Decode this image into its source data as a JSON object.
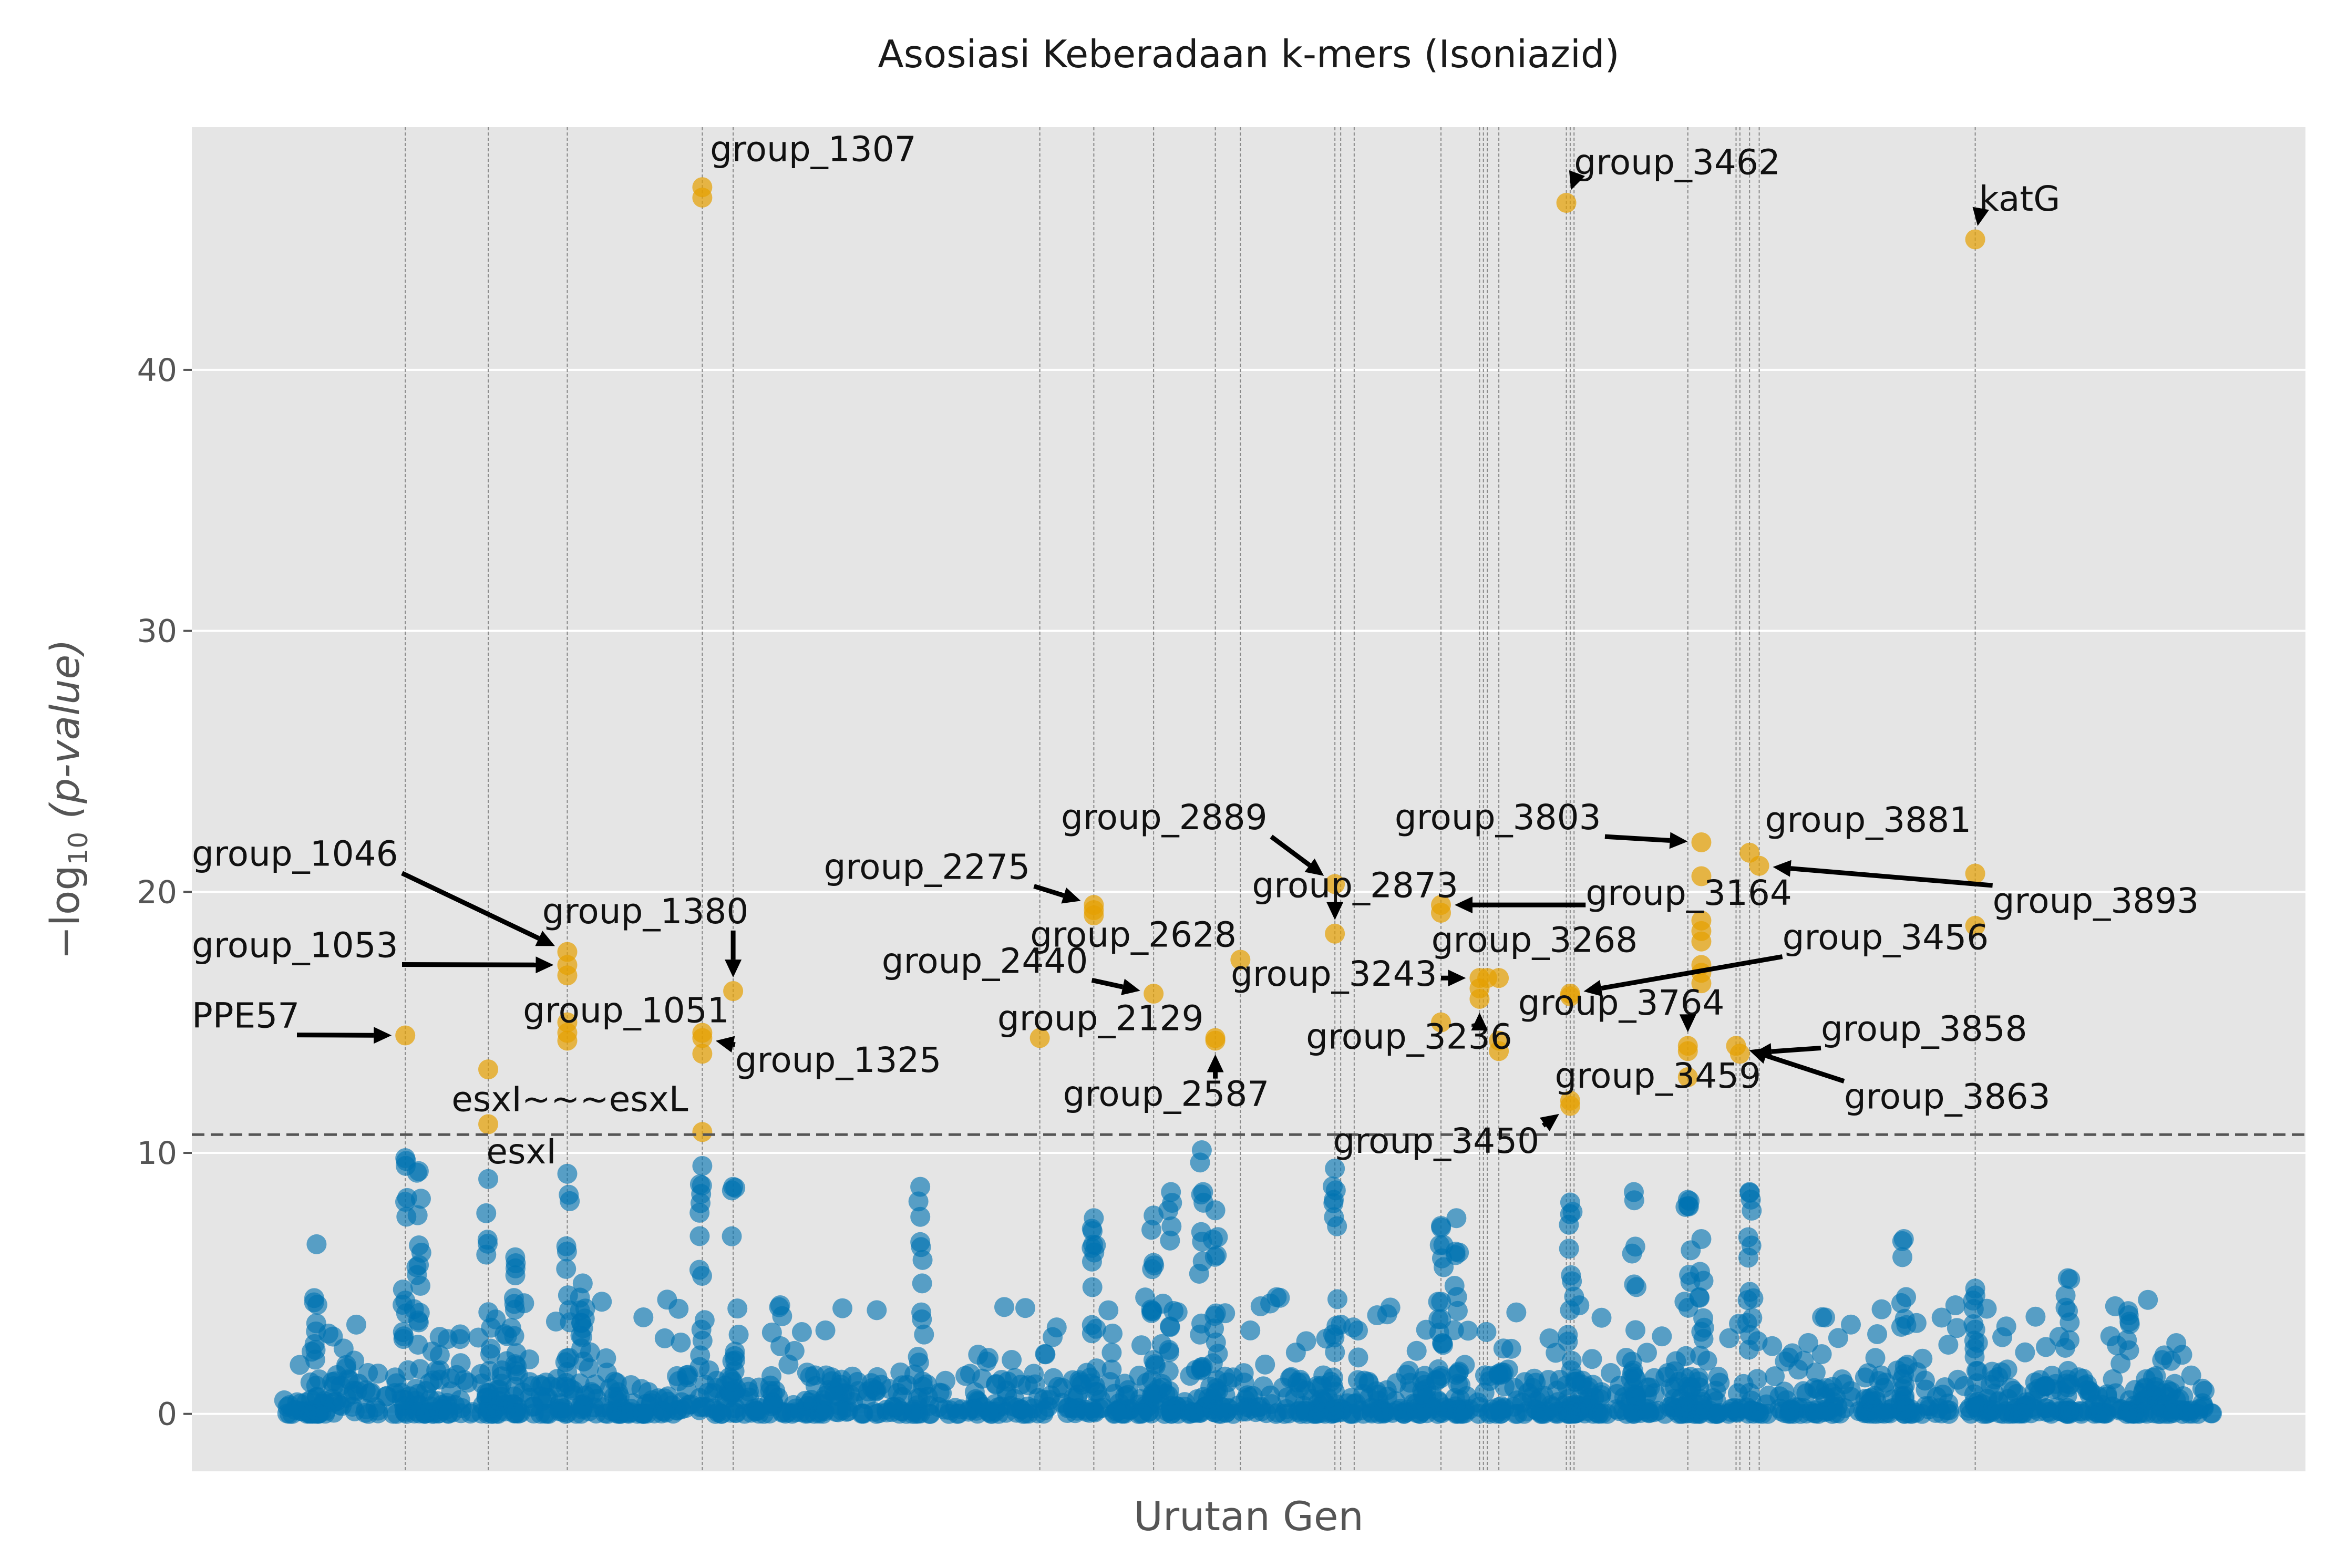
{
  "chart_data": {
    "type": "scatter",
    "title": "Asosiasi Keberadaan k-mers (Isoniazid)",
    "xlabel": "Urutan Gen",
    "ylabel": "−log₁₀ (p-value)",
    "xlim": [
      0,
      1000
    ],
    "ylim": [
      -2.2,
      49.3
    ],
    "yticks": [
      0,
      10,
      20,
      30,
      40
    ],
    "threshold": 10.7,
    "grid": true,
    "colors": {
      "background": "#e5e5e5",
      "grid": "#ffffff",
      "non_significant": "#0072b2",
      "significant": "#e69f00",
      "threshold_line": "#555555",
      "gene_line": "#888888"
    },
    "gene_lines": [
      63,
      106,
      147,
      217,
      233,
      392,
      420,
      451,
      483,
      496,
      545,
      548,
      555,
      600,
      620,
      622,
      624,
      630,
      665,
      667,
      669,
      728,
      753,
      755,
      760,
      765,
      877
    ],
    "significant_points": [
      {
        "x": 63,
        "y": 14.5
      },
      {
        "x": 106,
        "y": 13.2
      },
      {
        "x": 106,
        "y": 11.1
      },
      {
        "x": 147,
        "y": 17.7
      },
      {
        "x": 147,
        "y": 17.2
      },
      {
        "x": 147,
        "y": 16.8
      },
      {
        "x": 147,
        "y": 15.0
      },
      {
        "x": 147,
        "y": 14.6
      },
      {
        "x": 147,
        "y": 14.3
      },
      {
        "x": 217,
        "y": 47.0
      },
      {
        "x": 217,
        "y": 46.6
      },
      {
        "x": 217,
        "y": 14.6
      },
      {
        "x": 217,
        "y": 14.4
      },
      {
        "x": 217,
        "y": 13.8
      },
      {
        "x": 217,
        "y": 10.8
      },
      {
        "x": 233,
        "y": 16.2
      },
      {
        "x": 392,
        "y": 14.4
      },
      {
        "x": 420,
        "y": 19.5
      },
      {
        "x": 420,
        "y": 19.3
      },
      {
        "x": 420,
        "y": 19.1
      },
      {
        "x": 451,
        "y": 16.1
      },
      {
        "x": 483,
        "y": 14.4
      },
      {
        "x": 483,
        "y": 14.3
      },
      {
        "x": 496,
        "y": 17.4
      },
      {
        "x": 545,
        "y": 20.3
      },
      {
        "x": 545,
        "y": 18.4
      },
      {
        "x": 600,
        "y": 19.5
      },
      {
        "x": 600,
        "y": 19.2
      },
      {
        "x": 600,
        "y": 15.0
      },
      {
        "x": 620,
        "y": 16.7
      },
      {
        "x": 620,
        "y": 16.3
      },
      {
        "x": 620,
        "y": 15.9
      },
      {
        "x": 624,
        "y": 16.7
      },
      {
        "x": 630,
        "y": 16.7
      },
      {
        "x": 630,
        "y": 14.3
      },
      {
        "x": 630,
        "y": 13.9
      },
      {
        "x": 665,
        "y": 46.4
      },
      {
        "x": 667,
        "y": 16.1
      },
      {
        "x": 667,
        "y": 16.0
      },
      {
        "x": 667,
        "y": 12.0
      },
      {
        "x": 667,
        "y": 11.8
      },
      {
        "x": 728,
        "y": 14.1
      },
      {
        "x": 728,
        "y": 13.9
      },
      {
        "x": 728,
        "y": 12.9
      },
      {
        "x": 735,
        "y": 21.9
      },
      {
        "x": 735,
        "y": 20.6
      },
      {
        "x": 735,
        "y": 18.9
      },
      {
        "x": 735,
        "y": 18.5
      },
      {
        "x": 735,
        "y": 18.1
      },
      {
        "x": 735,
        "y": 17.2
      },
      {
        "x": 735,
        "y": 16.9
      },
      {
        "x": 735,
        "y": 16.5
      },
      {
        "x": 753,
        "y": 14.1
      },
      {
        "x": 755,
        "y": 13.8
      },
      {
        "x": 760,
        "y": 21.5
      },
      {
        "x": 765,
        "y": 21.0
      },
      {
        "x": 877,
        "y": 45.0
      },
      {
        "x": 877,
        "y": 20.7
      },
      {
        "x": 877,
        "y": 18.7
      }
    ],
    "annotations": [
      {
        "label": "group_1307",
        "x": 217,
        "y": 47.0,
        "tx": 221,
        "ty": 48.0
      },
      {
        "label": "group_3462",
        "x": 665,
        "y": 46.4,
        "tx": 669,
        "ty": 47.5
      },
      {
        "label": "katG",
        "x": 877,
        "y": 45.0,
        "tx": 879,
        "ty": 46.1
      },
      {
        "label": "group_1046",
        "x": 147,
        "y": 17.7,
        "tx": 0,
        "ty": 21.0
      },
      {
        "label": "group_1053",
        "x": 147,
        "y": 17.2,
        "tx": 0,
        "ty": 17.5
      },
      {
        "label": "PPE57",
        "x": 63,
        "y": 14.5,
        "tx": 0,
        "ty": 14.8
      },
      {
        "label": "group_1380",
        "x": 233,
        "y": 16.2,
        "tx": 134,
        "ty": 18.8
      },
      {
        "label": "group_1051",
        "x": 147,
        "y": 15.0,
        "tx": 124,
        "ty": 15.0
      },
      {
        "label": "group_1325",
        "x": 217,
        "y": 14.4,
        "tx": 234,
        "ty": 13.1
      },
      {
        "label": "esxI~~~esxL",
        "x": 106,
        "y": 13.2,
        "tx": 87,
        "ty": 11.6
      },
      {
        "label": "esxI",
        "x": 106,
        "y": 11.1,
        "tx": 105,
        "ty": 9.6
      },
      {
        "label": "group_2275",
        "x": 420,
        "y": 19.5,
        "tx": 280,
        "ty": 20.5
      },
      {
        "label": "group_2440",
        "x": 451,
        "y": 16.1,
        "tx": 310,
        "ty": 16.9
      },
      {
        "label": "group_2129",
        "x": 392,
        "y": 14.4,
        "tx": 370,
        "ty": 14.7
      },
      {
        "label": "group_2889",
        "x": 545,
        "y": 20.3,
        "tx": 403,
        "ty": 22.4
      },
      {
        "label": "group_2628",
        "x": 496,
        "y": 17.4,
        "tx": 387,
        "ty": 17.9
      },
      {
        "label": "group_2587",
        "x": 483,
        "y": 14.3,
        "tx": 404,
        "ty": 11.8
      },
      {
        "label": "group_2873",
        "x": 545,
        "y": 18.4,
        "tx": 502,
        "ty": 19.8
      },
      {
        "label": "group_3243",
        "x": 620,
        "y": 16.7,
        "tx": 491,
        "ty": 16.4
      },
      {
        "label": "group_3236",
        "x": 620,
        "y": 15.9,
        "tx": 530,
        "ty": 14.0
      },
      {
        "label": "group_3803",
        "x": 735,
        "y": 21.9,
        "tx": 576,
        "ty": 22.4
      },
      {
        "label": "group_3164",
        "x": 600,
        "y": 19.5,
        "tx": 675,
        "ty": 19.5
      },
      {
        "label": "group_3268",
        "x": 630,
        "y": 16.7,
        "tx": 595,
        "ty": 17.7
      },
      {
        "label": "group_3881",
        "x": 760,
        "y": 21.5,
        "tx": 768,
        "ty": 22.3
      },
      {
        "label": "group_3893",
        "x": 765,
        "y": 21.0,
        "tx": 886,
        "ty": 19.2
      },
      {
        "label": "group_3456",
        "x": 667,
        "y": 16.1,
        "tx": 777,
        "ty": 17.8
      },
      {
        "label": "group_3764",
        "x": 728,
        "y": 14.1,
        "tx": 640,
        "ty": 15.3
      },
      {
        "label": "group_3858",
        "x": 755,
        "y": 13.8,
        "tx": 797,
        "ty": 14.3
      },
      {
        "label": "group_3459",
        "x": 667,
        "y": 12.0,
        "tx": 659,
        "ty": 12.5
      },
      {
        "label": "group_3863",
        "x": 753,
        "y": 14.1,
        "tx": 809,
        "ty": 11.7
      },
      {
        "label": "group_3450",
        "x": 667,
        "y": 11.8,
        "tx": 544,
        "ty": 10.0
      }
    ]
  }
}
